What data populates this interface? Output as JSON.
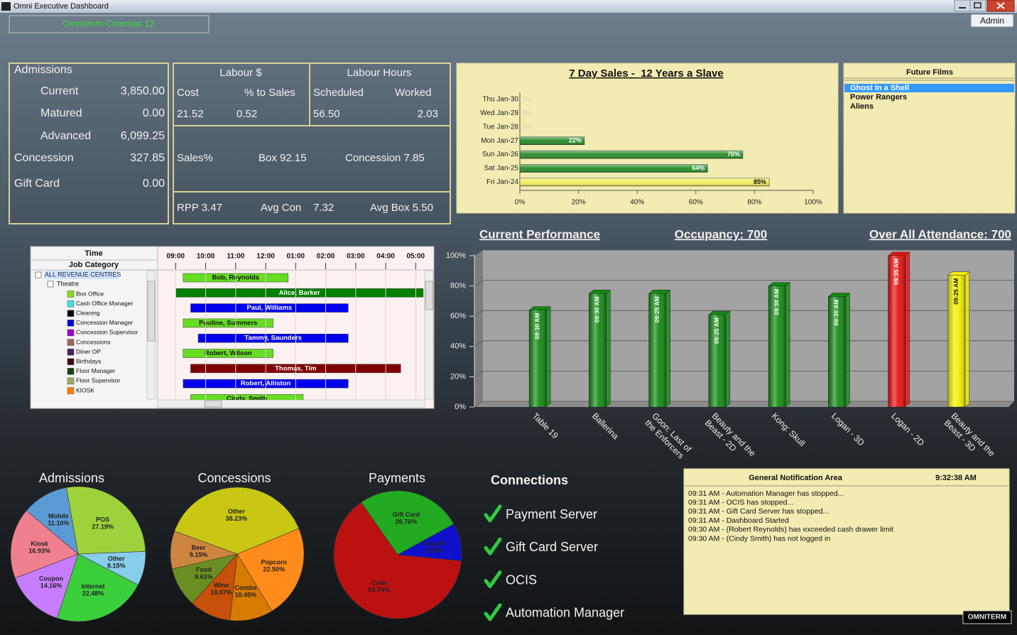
{
  "window": {
    "title": "Omni Executive Dashboard",
    "site": "Omniterm Cinemas 12",
    "user": "Admin",
    "logo": "OMNITERM"
  },
  "admissions_panel": {
    "title": "Admissions",
    "rows": [
      {
        "label": "Current",
        "value": "3,850.00"
      },
      {
        "label": "Matured",
        "value": "0.00"
      },
      {
        "label": "Advanced",
        "value": "6,099.25"
      },
      {
        "label": "Concession",
        "value": "327.85"
      },
      {
        "label": "Gift Card",
        "value": "0.00"
      }
    ]
  },
  "labour_panel": {
    "labour_cost": "Labour $",
    "labour_hours": "Labour Hours",
    "headers": [
      "Cost",
      "% to Sales",
      "Scheduled",
      "Worked"
    ],
    "values": [
      "21.52",
      "0.52",
      "56.50",
      "2.03"
    ],
    "sales_pct": "Sales%",
    "box": "Box 92.15",
    "concession": "Concession 7.85",
    "rpp": "RPP 3.47",
    "avg_con": "Avg Con",
    "avg_con_value": "7.32",
    "avg_box": "Avg Box 5.50"
  },
  "future_films": {
    "title": "Future Films",
    "films": [
      "Ghost In a Shell",
      "Power Rangers",
      "Aliens"
    ],
    "selected": 0
  },
  "schedule": {
    "time_header": "Time",
    "category_header": "Job Category",
    "root": "ALL REVENUE CENTRES",
    "group": "Theatre",
    "categories": [
      {
        "name": "Box Office",
        "color": "#80e020"
      },
      {
        "name": "Cash Office Manager",
        "color": "#40e0e0"
      },
      {
        "name": "Cleaning",
        "color": "#000000"
      },
      {
        "name": "Concession Manager",
        "color": "#0000dd"
      },
      {
        "name": "Concession Supervisor",
        "color": "#9900cc"
      },
      {
        "name": "Concessions",
        "color": "#996655"
      },
      {
        "name": "Diner OP",
        "color": "#442266"
      },
      {
        "name": "Birthdays",
        "color": "#440011"
      },
      {
        "name": "Floor Manager",
        "color": "#114411"
      },
      {
        "name": "Floor Supervisor",
        "color": "#99aa66"
      },
      {
        "name": "KIOSK",
        "color": "#ff8000"
      }
    ],
    "xlim": [
      8.4,
      17.3
    ],
    "xticks": [
      {
        "value": 9,
        "label": "09:00"
      },
      {
        "value": 10,
        "label": "10:00"
      },
      {
        "value": 11,
        "label": "11:00"
      },
      {
        "value": 12,
        "label": "12:00"
      },
      {
        "value": 13,
        "label": "01:00"
      },
      {
        "value": 14,
        "label": "02:00"
      },
      {
        "value": 15,
        "label": "03:00"
      },
      {
        "value": 16,
        "label": "04:00"
      },
      {
        "value": 17,
        "label": "05:00"
      }
    ],
    "shifts": [
      {
        "name": "Bob, Reynolds",
        "start": 9.25,
        "end": 12.75,
        "color": "#66dd22"
      },
      {
        "name": "Alice, Barker",
        "start": 9.0,
        "end": 17.25,
        "color": "#008000"
      },
      {
        "name": "Paul, Williams",
        "start": 9.5,
        "end": 14.75,
        "color": "#0000ee"
      },
      {
        "name": "Pauline, Summers",
        "start": 9.25,
        "end": 12.25,
        "color": "#66dd22"
      },
      {
        "name": "Tammy, Saunders",
        "start": 9.75,
        "end": 14.75,
        "color": "#0000ee"
      },
      {
        "name": "Robert, Wilson",
        "start": 9.25,
        "end": 12.25,
        "color": "#66dd22"
      },
      {
        "name": "Thomas, Tim",
        "start": 9.5,
        "end": 16.5,
        "color": "#800000"
      },
      {
        "name": "Robert, Alliston",
        "start": 9.25,
        "end": 14.75,
        "color": "#0000ee"
      },
      {
        "name": "Cindy, Smith",
        "start": 9.5,
        "end": 13.25,
        "color": "#66dd22"
      }
    ]
  },
  "connections": {
    "title": "Connections",
    "items": [
      "Payment Server",
      "Gift Card Server",
      "OCIS",
      "Automation Manager"
    ]
  },
  "notifications": {
    "title": "General Notification Area",
    "time": "9:32:38 AM",
    "messages": [
      "09:31 AM - Automation Manager has stopped...",
      "09:31 AM - OCIS has stopped...",
      "09:31 AM - Gift Card Server has stopped...",
      "09:31 AM - Dashboard Started",
      "09:30 AM - (Robert Reynolds) has exceeded cash drawer limit",
      "09:30 AM - (Cindy Smith) has not logged in"
    ]
  },
  "chart_data": [
    {
      "type": "bar",
      "horizontal": true,
      "title": "7 Day Sales -  12 Years a Slave",
      "categories": [
        "Thu Jan-30",
        "Wed Jan-29",
        "Tue Jan-28",
        "Mon Jan-27",
        "Sun Jan-26",
        "Sat Jan-25",
        "Fri Jan-24"
      ],
      "values": [
        0,
        0,
        0,
        22,
        76,
        64,
        85
      ],
      "value_labels": [
        "0%",
        "0%",
        "0%",
        "22%",
        "76%",
        "64%",
        "85%"
      ],
      "colors": [
        "#2f8f2f",
        "#2f8f2f",
        "#2f8f2f",
        "#2f8f2f",
        "#2f8f2f",
        "#2f8f2f",
        "#f0f060"
      ],
      "xlim": [
        0,
        100
      ],
      "xticks": [
        {
          "value": 0,
          "label": "0%"
        },
        {
          "value": 20,
          "label": "20%"
        },
        {
          "value": 40,
          "label": "40%"
        },
        {
          "value": 60,
          "label": "60%"
        },
        {
          "value": 80,
          "label": "80%"
        },
        {
          "value": 100,
          "label": "100%"
        }
      ]
    },
    {
      "type": "bar",
      "title": "Current Performance",
      "occupancy": "Occupancy: 700",
      "attendance": "Over All Attendance: 700",
      "categories": [
        "Table 19",
        "Ballerina",
        "Goon: Last of the Enforcers",
        "Beauty and the Beast - 2D",
        "Kong: Skull",
        "Logan - 3D",
        "Logan - 2D",
        "Beauty and the Beast - 3D"
      ],
      "values": [
        64,
        75,
        75,
        61,
        80,
        73,
        100,
        87
      ],
      "bar_labels": [
        "09:30 AM",
        "09:30 AM",
        "09:25 AM",
        "09:25 AM",
        "09:30 AM",
        "09:30 AM",
        "09:35 AM",
        "09:25 AM"
      ],
      "colors": [
        "#138a13",
        "#138a13",
        "#138a13",
        "#138a13",
        "#138a13",
        "#138a13",
        "#e81010",
        "#f4f000"
      ],
      "ylim": [
        0,
        100
      ],
      "yticks": [
        {
          "value": 0,
          "label": "0%"
        },
        {
          "value": 20,
          "label": "20%"
        },
        {
          "value": 40,
          "label": "40%"
        },
        {
          "value": 60,
          "label": "60%"
        },
        {
          "value": 80,
          "label": "80%"
        },
        {
          "value": 100,
          "label": "100%"
        }
      ],
      "grid": true
    },
    {
      "type": "pie",
      "title": "Admissions",
      "categories": [
        "Mobile",
        "POS",
        "Other",
        "Internet",
        "Coupon",
        "Kiosk"
      ],
      "values": [
        11.1,
        27.19,
        8.15,
        22.48,
        14.16,
        16.93
      ],
      "value_labels": [
        "11.10%",
        "27.19%",
        "8.15%",
        "22.48%",
        "14.16%",
        "16.93%"
      ],
      "colors": [
        "#5b9bd5",
        "#9ed23a",
        "#87ceeb",
        "#3ccf3c",
        "#c77dff",
        "#f08090"
      ]
    },
    {
      "type": "pie",
      "title": "Concessions",
      "categories": [
        "Other",
        "Popcorn",
        "Combo",
        "Wine",
        "Food",
        "Beer"
      ],
      "values": [
        38.23,
        22.5,
        10.45,
        10.07,
        9.61,
        9.15
      ],
      "value_labels": [
        "38.23%",
        "22.50%",
        "10.45%",
        "10.07%",
        "9.61%",
        "9.15%"
      ],
      "colors": [
        "#c8c814",
        "#ff8c1a",
        "#d97a00",
        "#c8500a",
        "#6b8e23",
        "#cd853f"
      ]
    },
    {
      "type": "pie",
      "title": "Payments",
      "categories": [
        "Gift Card",
        "Coupon",
        "Cash"
      ],
      "values": [
        26.76,
        9.5,
        63.74
      ],
      "value_labels": [
        "26.76%",
        "9.50%",
        "63.74%"
      ],
      "colors": [
        "#22aa22",
        "#1010cc",
        "#bb1111"
      ]
    }
  ]
}
